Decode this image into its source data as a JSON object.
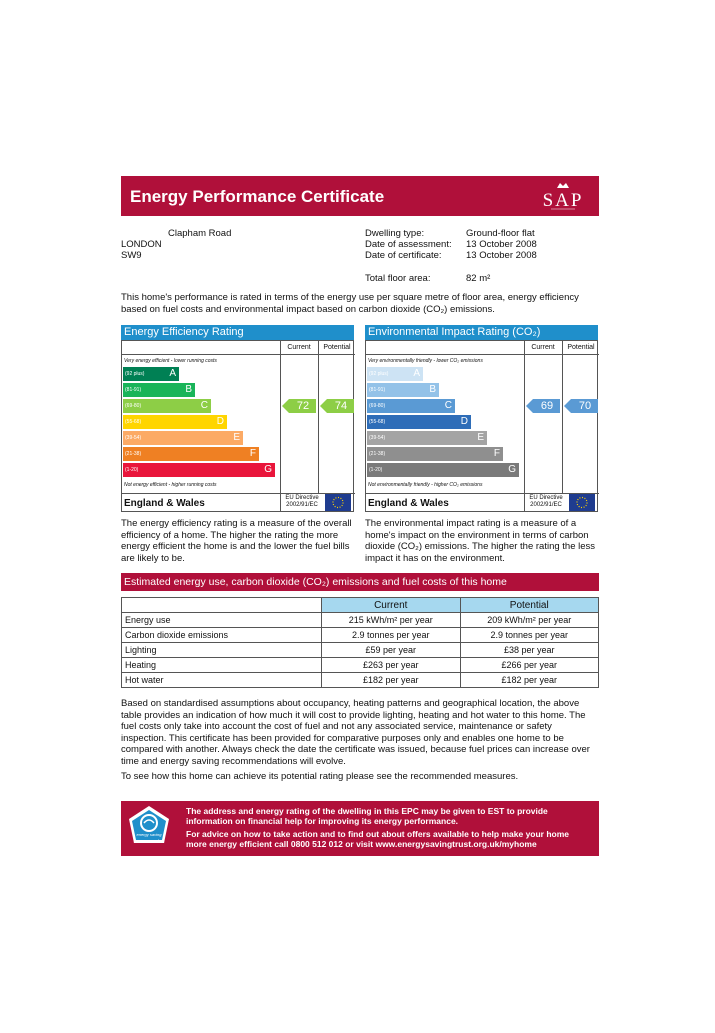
{
  "header": {
    "title": "Energy Performance Certificate",
    "logo_text": "SAP"
  },
  "address": {
    "line1": "Clapham Road",
    "line2": "LONDON",
    "line3": "SW9"
  },
  "details": {
    "dwelling_type_label": "Dwelling type:",
    "dwelling_type": "Ground-floor flat",
    "assessment_label": "Date of assessment:",
    "assessment_date": "13 October 2008",
    "certificate_label": "Date of certificate:",
    "certificate_date": "13 October 2008",
    "floor_area_label": "Total floor area:",
    "floor_area": "82 m²"
  },
  "intro": "This home's performance is rated in terms of the energy use per square metre of floor area, energy efficiency based on fuel costs and environmental impact based on carbon dioxide (CO₂) emissions.",
  "efficiency": {
    "title": "Energy Efficiency Rating",
    "current_label": "Current",
    "potential_label": "Potential",
    "top_note": "Very energy efficient - lower running costs",
    "bottom_note": "Not energy efficient - higher running costs",
    "region": "England & Wales",
    "eu_directive": "EU Directive\n2002/91/EC",
    "bands": [
      {
        "range": "(92 plus)",
        "letter": "A",
        "color": "#008054"
      },
      {
        "range": "(81-91)",
        "letter": "B",
        "color": "#19b459"
      },
      {
        "range": "(69-80)",
        "letter": "C",
        "color": "#8dce46"
      },
      {
        "range": "(55-68)",
        "letter": "D",
        "color": "#ffd500"
      },
      {
        "range": "(39-54)",
        "letter": "E",
        "color": "#fcaa65"
      },
      {
        "range": "(21-38)",
        "letter": "F",
        "color": "#ef8023"
      },
      {
        "range": "(1-20)",
        "letter": "G",
        "color": "#e9153b"
      }
    ],
    "current": "72",
    "potential": "74",
    "arrow_color": "#8dce46"
  },
  "environmental": {
    "title": "Environmental Impact Rating (CO₂)",
    "current_label": "Current",
    "potential_label": "Potential",
    "top_note": "Very environmentally friendly - lower CO₂ emissions",
    "bottom_note": "Not environmentally friendly - higher CO₂ emissions",
    "region": "England & Wales",
    "eu_directive": "EU Directive\n2002/91/EC",
    "bands": [
      {
        "range": "(92 plus)",
        "letter": "A",
        "color": "#cde3f4"
      },
      {
        "range": "(81-91)",
        "letter": "B",
        "color": "#93c2e8"
      },
      {
        "range": "(69-80)",
        "letter": "C",
        "color": "#5a9ad4"
      },
      {
        "range": "(55-68)",
        "letter": "D",
        "color": "#2e6db8"
      },
      {
        "range": "(39-54)",
        "letter": "E",
        "color": "#a4a4a4"
      },
      {
        "range": "(21-38)",
        "letter": "F",
        "color": "#8f8f8f"
      },
      {
        "range": "(1-20)",
        "letter": "G",
        "color": "#7a7a7a"
      }
    ],
    "current": "69",
    "potential": "70",
    "arrow_color": "#5a9ad4"
  },
  "efficiency_text": "The energy efficiency rating is a measure of the overall efficiency of a home. The higher the rating the more energy efficient the home is and the lower the fuel bills are likely to be.",
  "environment_text": "The environmental impact rating is a measure of a home's impact on the environment in terms of carbon dioxide (CO₂) emissions. The higher the rating the less impact it has on the environment.",
  "estimates": {
    "title": "Estimated energy use, carbon dioxide (CO₂) emissions and fuel costs of this home",
    "headers": [
      "",
      "Current",
      "Potential"
    ],
    "rows": [
      [
        "Energy use",
        "215 kWh/m² per year",
        "209 kWh/m² per year"
      ],
      [
        "Carbon dioxide emissions",
        "2.9 tonnes per year",
        "2.9 tonnes per year"
      ],
      [
        "Lighting",
        "£59 per year",
        "£38 per year"
      ],
      [
        "Heating",
        "£263 per year",
        "£266 per year"
      ],
      [
        "Hot water",
        "£182 per year",
        "£182 per year"
      ]
    ]
  },
  "assumptions": "Based on standardised assumptions about occupancy, heating patterns and geographical location, the above table provides an indication of how much it will cost to provide lighting, heating and hot water to this home. The fuel costs only take into account the cost of fuel and not any associated service, maintenance or safety inspection. This certificate has been provided for comparative purposes only and enables one home to be compared with another. Always check the date the certificate was issued, because fuel prices can increase over time and energy saving recommendations will evolve.",
  "recommend": "To see how this home can achieve its potential rating please see the recommended measures.",
  "footer": {
    "logo_line1": "energy saving",
    "logo_line2": "recommended",
    "text1": "The address and energy rating of the dwelling in this EPC may be given to EST to provide information on financial help for improving its energy performance.",
    "text2": "For advice on how to take action and to find out about offers available to help make your home more energy efficient call 0800 512 012 or visit www.energysavingtrust.org.uk/myhome"
  },
  "colors": {
    "brand": "#b0103a",
    "header_blue": "#1f8fcb",
    "table_header": "#a6d8ef"
  }
}
